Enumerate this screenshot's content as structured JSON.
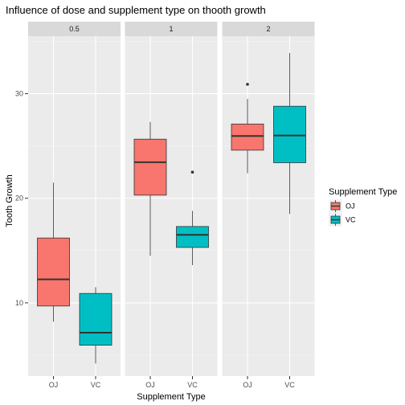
{
  "chart_data": {
    "type": "boxplot",
    "title": "Influence of dose and supplement type on thooth growth",
    "xlabel": "Supplement Type",
    "ylabel": "Tooth Growth",
    "ylim": [
      3,
      35.5
    ],
    "yticks": [
      10,
      20,
      30
    ],
    "categories": [
      "OJ",
      "VC"
    ],
    "colors": {
      "OJ": "#F8766D",
      "VC": "#00BFC4"
    },
    "legend": {
      "title": "Supplement Type",
      "items": [
        "OJ",
        "VC"
      ],
      "position": "right"
    },
    "grid": true,
    "facets": [
      {
        "label": "0.5",
        "boxes": [
          {
            "group": "OJ",
            "min": 8.2,
            "q1": 9.7,
            "median": 12.25,
            "q3": 16.2,
            "max": 21.5,
            "outliers": []
          },
          {
            "group": "VC",
            "min": 4.2,
            "q1": 5.95,
            "median": 7.15,
            "q3": 10.9,
            "max": 11.5,
            "outliers": []
          }
        ]
      },
      {
        "label": "1",
        "boxes": [
          {
            "group": "OJ",
            "min": 14.5,
            "q1": 20.3,
            "median": 23.45,
            "q3": 25.65,
            "max": 27.3,
            "outliers": []
          },
          {
            "group": "VC",
            "min": 13.6,
            "q1": 15.3,
            "median": 16.5,
            "q3": 17.3,
            "max": 18.8,
            "outliers": [
              22.5
            ]
          }
        ]
      },
      {
        "label": "2",
        "boxes": [
          {
            "group": "OJ",
            "min": 22.4,
            "q1": 24.6,
            "median": 25.95,
            "q3": 27.1,
            "max": 29.5,
            "outliers": [
              30.9
            ]
          },
          {
            "group": "VC",
            "min": 18.5,
            "q1": 23.4,
            "median": 26.0,
            "q3": 28.8,
            "max": 33.9,
            "outliers": []
          }
        ]
      }
    ]
  }
}
